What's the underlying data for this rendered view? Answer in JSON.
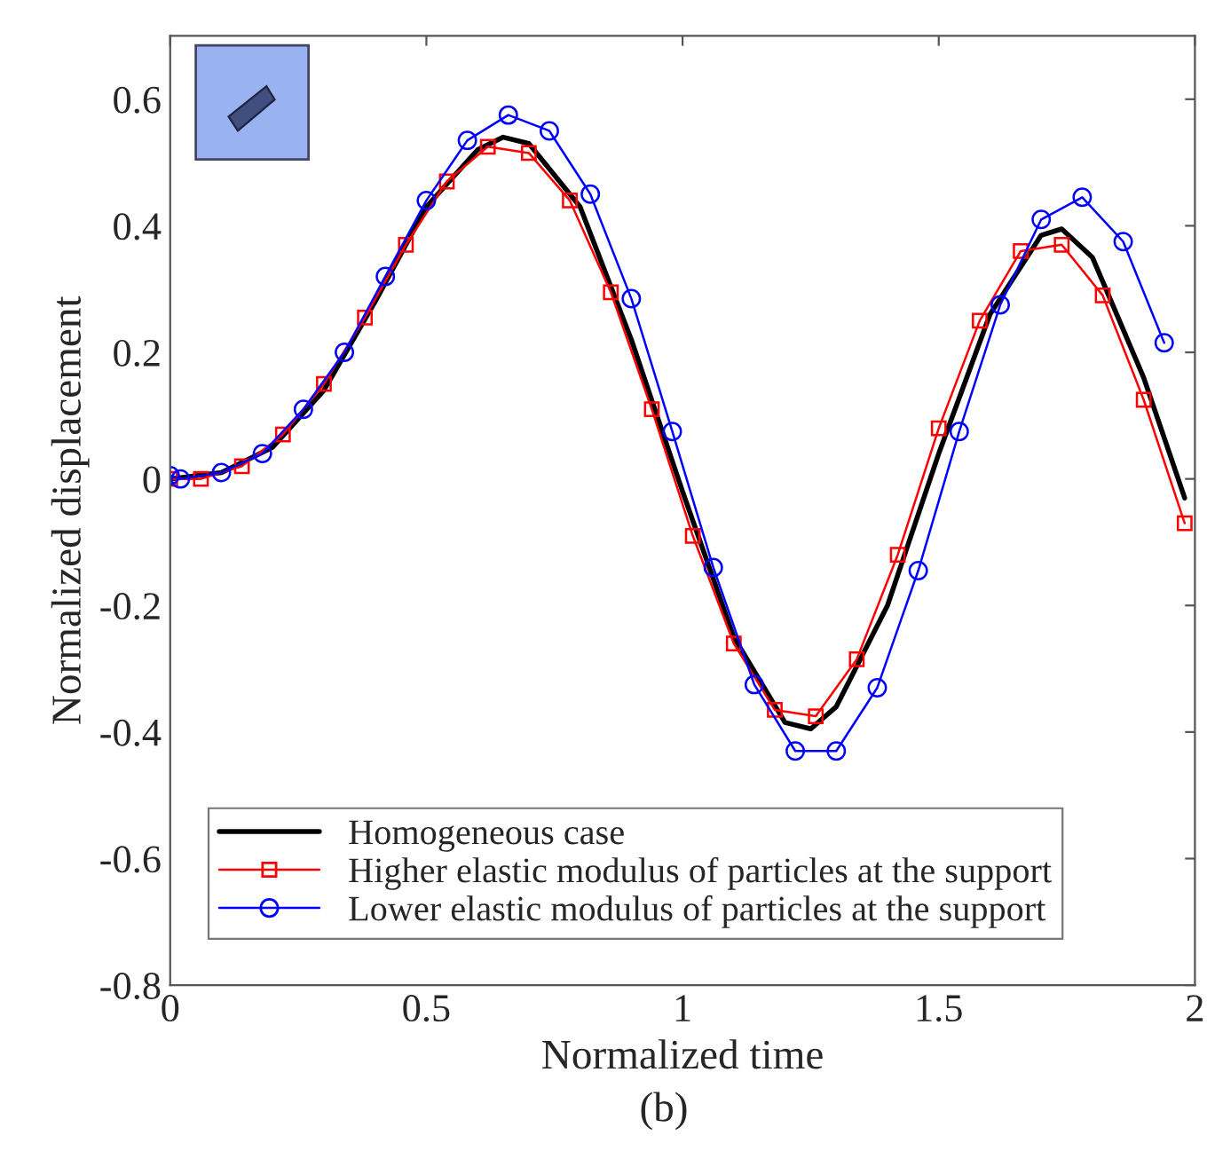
{
  "chart_data": {
    "type": "line",
    "xlabel": "Normalized time",
    "ylabel": "Normalized displacement",
    "annotations": [
      "(b)"
    ],
    "xlim": [
      0,
      2
    ],
    "ylim": [
      -0.8,
      0.7
    ],
    "xticks": [
      0,
      0.5,
      1,
      1.5,
      2
    ],
    "yticks": [
      -0.8,
      -0.6,
      -0.4,
      -0.2,
      0,
      0.2,
      0.4,
      0.6
    ],
    "grid": false,
    "legend": "bottom left",
    "series": [
      {
        "name": "Homogeneous case",
        "color": "#000000",
        "marker": "none",
        "x": [
          0,
          0.1,
          0.2,
          0.3,
          0.4,
          0.5,
          0.6,
          0.65,
          0.7,
          0.8,
          0.9,
          1.0,
          1.1,
          1.2,
          1.25,
          1.3,
          1.4,
          1.5,
          1.6,
          1.7,
          1.74,
          1.8,
          1.9,
          1.98
        ],
        "values": [
          0,
          0.01,
          0.05,
          0.14,
          0.28,
          0.43,
          0.52,
          0.54,
          0.53,
          0.43,
          0.22,
          -0.02,
          -0.25,
          -0.385,
          -0.395,
          -0.36,
          -0.2,
          0.04,
          0.26,
          0.385,
          0.395,
          0.35,
          0.16,
          -0.03
        ]
      },
      {
        "name": "Higher elastic modulus of particles at the support",
        "color": "#ff0000",
        "marker": "square",
        "x": [
          0,
          0.06,
          0.14,
          0.22,
          0.3,
          0.38,
          0.46,
          0.54,
          0.62,
          0.7,
          0.78,
          0.86,
          0.94,
          1.02,
          1.1,
          1.18,
          1.26,
          1.34,
          1.42,
          1.5,
          1.58,
          1.66,
          1.74,
          1.82,
          1.9,
          1.98
        ],
        "values": [
          0,
          0,
          0.02,
          0.07,
          0.15,
          0.255,
          0.37,
          0.47,
          0.525,
          0.515,
          0.44,
          0.295,
          0.11,
          -0.09,
          -0.26,
          -0.365,
          -0.375,
          -0.285,
          -0.12,
          0.08,
          0.25,
          0.36,
          0.37,
          0.29,
          0.125,
          -0.07
        ]
      },
      {
        "name": "Lower elastic modulus of particles at the support",
        "color": "#0000ff",
        "marker": "circle",
        "x": [
          0,
          0.02,
          0.1,
          0.18,
          0.26,
          0.34,
          0.42,
          0.5,
          0.58,
          0.66,
          0.74,
          0.82,
          0.9,
          0.98,
          1.06,
          1.14,
          1.22,
          1.3,
          1.38,
          1.46,
          1.54,
          1.62,
          1.7,
          1.78,
          1.86,
          1.94
        ],
        "values": [
          0.005,
          0,
          0.01,
          0.04,
          0.11,
          0.2,
          0.32,
          0.44,
          0.535,
          0.575,
          0.55,
          0.45,
          0.285,
          0.075,
          -0.14,
          -0.325,
          -0.43,
          -0.43,
          -0.33,
          -0.145,
          0.075,
          0.275,
          0.41,
          0.445,
          0.375,
          0.215
        ]
      }
    ]
  }
}
